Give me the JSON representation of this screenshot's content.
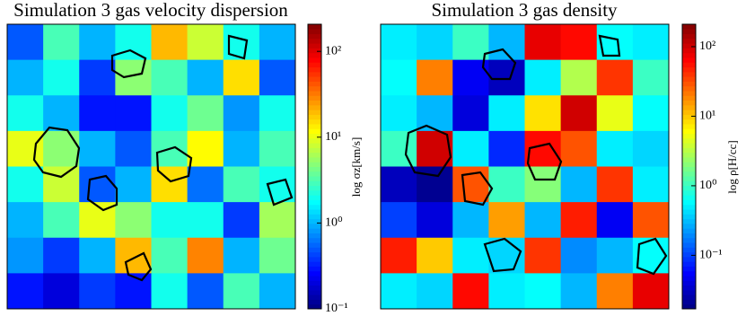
{
  "chart_data": [
    {
      "type": "heatmap",
      "title": "Simulation 3 gas velocity dispersion",
      "colorbar_label": "log σz[km/s]",
      "colormap": "jet",
      "log_scale": true,
      "zlim": [
        0.1,
        207
      ],
      "zticks": [
        {
          "value": 0.1,
          "label": "10⁻¹"
        },
        {
          "value": 1,
          "label": "10⁰"
        },
        {
          "value": 10,
          "label": "10¹"
        },
        {
          "value": 100,
          "label": "10²"
        }
      ],
      "z": [
        [
          0.5,
          3,
          1,
          2,
          20,
          8,
          2,
          1
        ],
        [
          1,
          2,
          0.4,
          5,
          3,
          1,
          15,
          0.5
        ],
        [
          2,
          1,
          0.3,
          0.3,
          2,
          4,
          0.8,
          2
        ],
        [
          10,
          5,
          1,
          0.5,
          3,
          12,
          1,
          3
        ],
        [
          2,
          8,
          0.5,
          1,
          15,
          0.6,
          3,
          2
        ],
        [
          1,
          3,
          10,
          5,
          2,
          2,
          0.4,
          6
        ],
        [
          0.8,
          0.4,
          1,
          20,
          3,
          30,
          1,
          4
        ],
        [
          0.3,
          0.2,
          0.4,
          0.3,
          2,
          0.5,
          3,
          1
        ]
      ]
    },
    {
      "type": "heatmap",
      "title": "Simulation 3 gas density",
      "colorbar_label": "log ρ[H/cc]",
      "colormap": "jet",
      "log_scale": true,
      "zlim": [
        0.017,
        210
      ],
      "zticks": [
        {
          "value": 0.1,
          "label": "10⁻¹"
        },
        {
          "value": 1,
          "label": "10⁰"
        },
        {
          "value": 10,
          "label": "10¹"
        },
        {
          "value": 100,
          "label": "10²"
        }
      ],
      "z": [
        [
          0.5,
          0.4,
          1,
          0.3,
          80,
          60,
          0.6,
          0.5
        ],
        [
          0.6,
          20,
          0.05,
          0.03,
          0.5,
          3,
          40,
          1
        ],
        [
          0.5,
          0.3,
          0.04,
          0.5,
          8,
          100,
          5,
          0.6
        ],
        [
          1,
          100,
          0.5,
          0.08,
          60,
          30,
          0.5,
          0.4
        ],
        [
          0.03,
          0.02,
          30,
          1,
          2,
          0.3,
          40,
          0.5
        ],
        [
          0.1,
          0.04,
          0.3,
          15,
          0.3,
          50,
          0.05,
          30
        ],
        [
          50,
          10,
          0.5,
          0.4,
          40,
          0.2,
          0.3,
          0.6
        ],
        [
          0.5,
          0.4,
          60,
          0.5,
          0.6,
          0.3,
          20,
          80
        ]
      ]
    }
  ]
}
